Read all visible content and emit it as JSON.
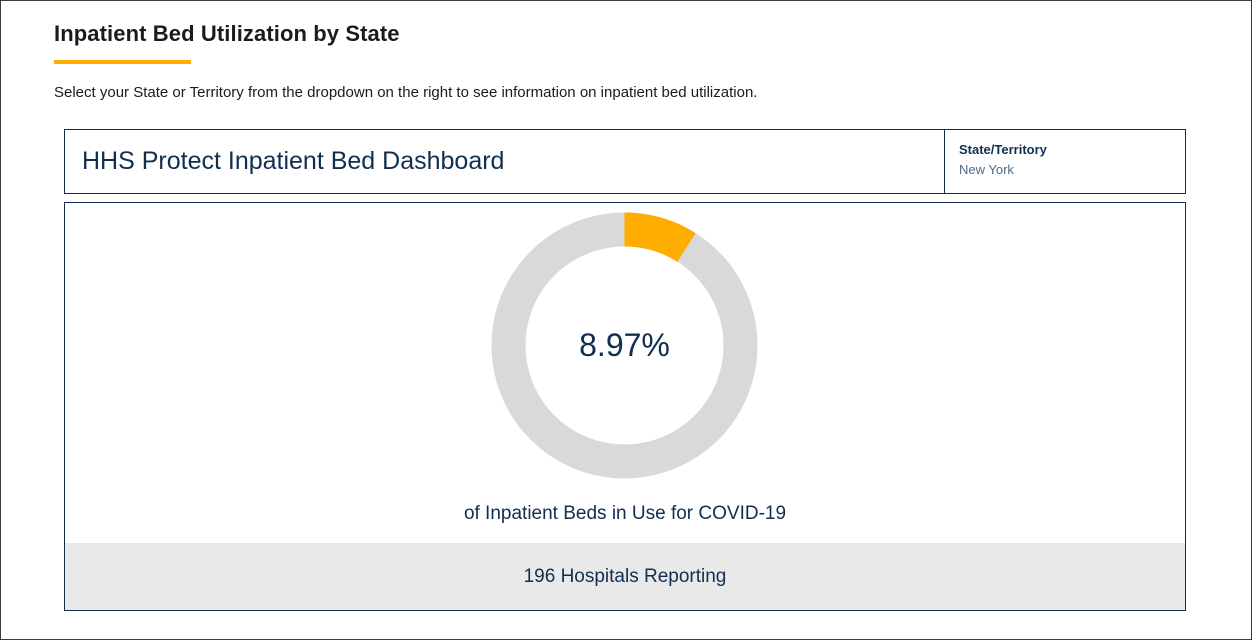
{
  "page": {
    "title": "Inpatient Bed Utilization by State",
    "intro": "Select your State or Territory from the dropdown on the right to see information on inpatient bed utilization."
  },
  "dashboard": {
    "title": "HHS Protect Inpatient Bed Dashboard",
    "state_label": "State/Territory",
    "state_value": "New York"
  },
  "metric": {
    "percent_text": "8.97%",
    "percent_value": 8.97,
    "caption": "of Inpatient Beds in Use for COVID-19",
    "hospitals_reporting": "196 Hospitals Reporting"
  },
  "colors": {
    "accent": "#ffad00",
    "navy": "#112e51",
    "ring_track": "#d9d9d9",
    "footer_bg": "#e9e9e9"
  }
}
